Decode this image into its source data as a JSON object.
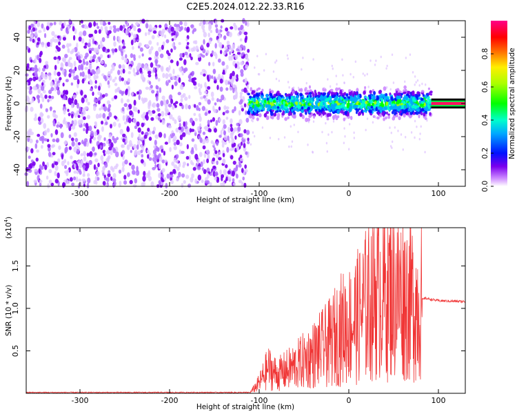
{
  "title": "C2E5.2024.012.22.33.R16",
  "chart_data": [
    {
      "type": "heatmap",
      "name": "spectrogram",
      "xlabel": "Height of straight line (km)",
      "ylabel": "Frequency (Hz)",
      "xlim": [
        -360,
        130
      ],
      "ylim": [
        -50,
        50
      ],
      "xticks": [
        -300,
        -200,
        -100,
        0,
        100
      ],
      "yticks": [
        -40,
        -20,
        0,
        20,
        40
      ],
      "colorbar": {
        "label": "Normalized spectral amplitude",
        "range": [
          0.0,
          1.0
        ],
        "ticks": [
          "0.0",
          "0.2",
          "0.4",
          "0.6",
          "0.8"
        ]
      },
      "regions": [
        {
          "x": [
            -360,
            -112
          ],
          "freq_span": [
            -50,
            50
          ],
          "typical_amplitude": 0.05,
          "pattern": "broadband noise"
        },
        {
          "x": [
            -112,
            92
          ],
          "freq_center": 0,
          "freq_halfwidth": 8,
          "typical_amplitude": 0.3,
          "pattern": "signal band around 0 Hz"
        },
        {
          "x": [
            92,
            130
          ],
          "freq_center": 0,
          "freq_halfwidth": 1,
          "typical_amplitude": 1.0,
          "pattern": "narrow peak at 0 Hz"
        }
      ]
    },
    {
      "type": "line",
      "name": "snr",
      "xlabel": "Height of straight line (km)",
      "ylabel": "SNR (10 * v/v)",
      "multiplier": "(x10^4)",
      "xlim": [
        -360,
        130
      ],
      "ylim": [
        0,
        1.95
      ],
      "xticks": [
        -300,
        -200,
        -100,
        0,
        100
      ],
      "yticks": [
        "0.5",
        "1.0",
        "1.5"
      ],
      "color": "#f03535",
      "envelope_points": [
        [
          -360,
          0.01
        ],
        [
          -110,
          0.01
        ],
        [
          -100,
          0.12
        ],
        [
          -90,
          0.3
        ],
        [
          -80,
          0.22
        ],
        [
          -60,
          0.32
        ],
        [
          -40,
          0.45
        ],
        [
          -20,
          0.6
        ],
        [
          -10,
          0.75
        ],
        [
          0,
          0.8
        ],
        [
          10,
          0.9
        ],
        [
          20,
          1.05
        ],
        [
          30,
          1.2
        ],
        [
          40,
          1.25
        ],
        [
          50,
          1.2
        ],
        [
          60,
          1.15
        ],
        [
          70,
          1.1
        ],
        [
          75,
          1.05
        ],
        [
          85,
          1.12
        ],
        [
          100,
          1.09
        ],
        [
          130,
          1.08
        ]
      ]
    }
  ]
}
